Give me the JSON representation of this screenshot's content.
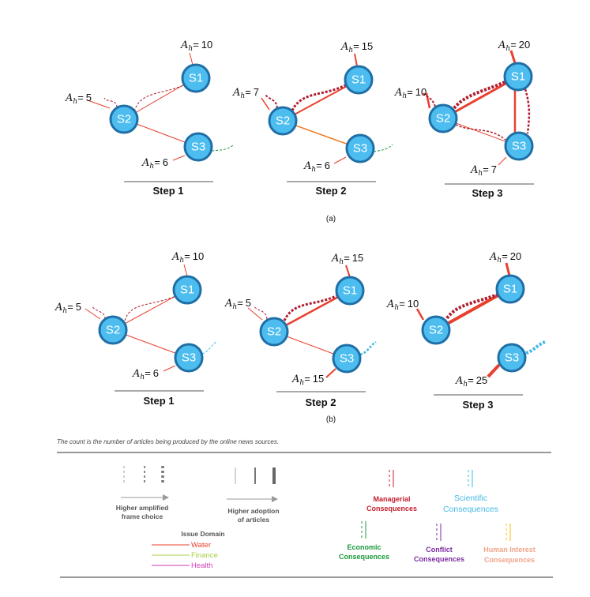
{
  "panels": [
    {
      "label": "(a)",
      "steps": [
        {
          "title": "Step 1",
          "values": [
            "10",
            "5",
            "6"
          ]
        },
        {
          "title": "Step 2",
          "values": [
            "15",
            "7",
            "6"
          ]
        },
        {
          "title": "Step 3",
          "values": [
            "20",
            "10",
            "7"
          ]
        }
      ]
    },
    {
      "label": "(b)",
      "steps": [
        {
          "title": "Step 1",
          "values": [
            "10",
            "5",
            "6"
          ]
        },
        {
          "title": "Step 2",
          "values": [
            "15",
            "5",
            "15"
          ]
        },
        {
          "title": "Step 3",
          "values": [
            "20",
            "10",
            "25"
          ]
        }
      ]
    }
  ],
  "ah_prefix": "A",
  "ah_sub": "h",
  "ah_eq": "=",
  "nodes": [
    "S1",
    "S2",
    "S3"
  ],
  "note": "The count is the number of articles being produced by the online news sources.",
  "legend": {
    "frame_choice": [
      "Higher amplified",
      "frame choice"
    ],
    "adoption": [
      "Higher adoption",
      "of articles"
    ],
    "issue_domain": {
      "title": "Issue Domain",
      "items": [
        {
          "label": "Water",
          "color": "#e8402e"
        },
        {
          "label": "Finance",
          "color": "#a8cf45"
        },
        {
          "label": "Health",
          "color": "#d63bb5"
        }
      ]
    },
    "consequences": [
      {
        "label": [
          "Managerial",
          "Consequences"
        ],
        "color": "#c4202f"
      },
      {
        "label": [
          "Scientific",
          "Consequences"
        ],
        "color": "#45b8e6"
      },
      {
        "label": [
          "Economic",
          "Consequences"
        ],
        "color": "#1a9a3c"
      },
      {
        "label": [
          "Conflict",
          "Consequences"
        ],
        "color": "#7a2aa0"
      },
      {
        "label": [
          "Human Interest",
          "Consequences"
        ],
        "color": "#f2a48a"
      }
    ]
  },
  "colors": {
    "node_fill": "#4dbdf0",
    "node_stroke": "#1f6fa6",
    "water_line": "#e8402e",
    "managerial_dotted": "#b01c2e",
    "economic_dotted": "#1a9a3c",
    "scientific_dotted": "#45b8e6",
    "orange_edge": "#f07c23"
  }
}
